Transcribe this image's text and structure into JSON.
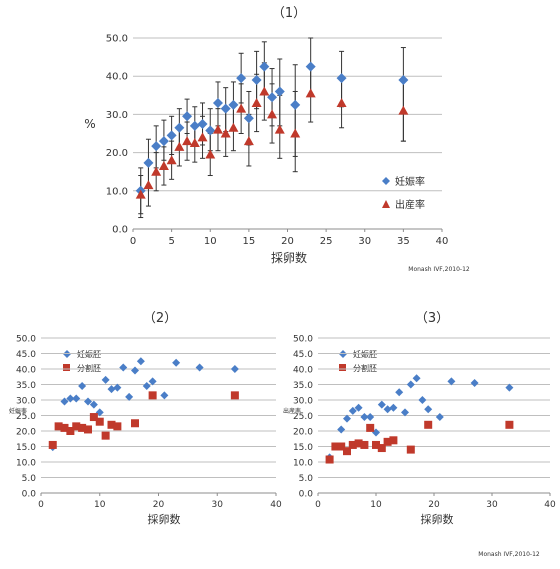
{
  "charts": [
    {
      "id": "c1",
      "title": "（1）",
      "xlabel": "採卵数",
      "ylabel": "%",
      "credit": "Monash IVF,2010-12",
      "xlim": [
        0,
        40
      ],
      "ylim": [
        0,
        50
      ],
      "xticks": [
        0,
        5,
        10,
        15,
        20,
        25,
        30,
        35,
        40
      ],
      "yticks": [
        0,
        10,
        20,
        30,
        40,
        50
      ],
      "legend": [
        "妊娠率",
        "出産率"
      ]
    },
    {
      "id": "c2",
      "title": "（2）",
      "xlabel": "採卵数",
      "ylabel": "妊娠率",
      "xlim": [
        0,
        40
      ],
      "ylim": [
        0,
        50
      ],
      "xticks": [
        0,
        10,
        20,
        30,
        40
      ],
      "yticks": [
        0,
        5,
        10,
        15,
        20,
        25,
        30,
        35,
        40,
        45,
        50
      ],
      "legend": [
        "妊娠胚",
        "分割胚"
      ]
    },
    {
      "id": "c3",
      "title": "（3）",
      "xlabel": "採卵数",
      "ylabel": "出産率",
      "credit": "Monash IVF,2010-12",
      "xlim": [
        0,
        40
      ],
      "ylim": [
        0,
        50
      ],
      "xticks": [
        0,
        10,
        20,
        30,
        40
      ],
      "yticks": [
        0,
        5,
        10,
        15,
        20,
        25,
        30,
        35,
        40,
        45,
        50
      ],
      "legend": [
        "妊娠胚",
        "分割胚"
      ]
    }
  ],
  "chart_data": [
    {
      "type": "scatter",
      "title": "（1）",
      "xlabel": "採卵数",
      "ylabel": "%",
      "xlim": [
        0,
        40
      ],
      "ylim": [
        0,
        50
      ],
      "grid": true,
      "legend_position": "bottom-right",
      "series": [
        {
          "name": "妊娠率",
          "color": "#4A7EC7",
          "marker": "diamond",
          "points": [
            {
              "x": 1,
              "y": 10.0,
              "lo": 4.0,
              "hi": 16.0
            },
            {
              "x": 2,
              "y": 17.3,
              "lo": 11.0,
              "hi": 23.5
            },
            {
              "x": 3,
              "y": 21.7,
              "lo": 16.0,
              "hi": 27.0
            },
            {
              "x": 4,
              "y": 23.0,
              "lo": 18.0,
              "hi": 28.5
            },
            {
              "x": 5,
              "y": 24.5,
              "lo": 19.5,
              "hi": 29.5
            },
            {
              "x": 6,
              "y": 26.5,
              "lo": 21.5,
              "hi": 31.5
            },
            {
              "x": 7,
              "y": 29.5,
              "lo": 25.0,
              "hi": 34.0
            },
            {
              "x": 8,
              "y": 27.0,
              "lo": 22.0,
              "hi": 32.0
            },
            {
              "x": 9,
              "y": 27.5,
              "lo": 22.0,
              "hi": 33.0
            },
            {
              "x": 10,
              "y": 25.8,
              "lo": 20.5,
              "hi": 31.5
            },
            {
              "x": 11,
              "y": 33.0,
              "lo": 27.0,
              "hi": 38.5
            },
            {
              "x": 12,
              "y": 31.5,
              "lo": 25.5,
              "hi": 37.0
            },
            {
              "x": 13,
              "y": 32.5,
              "lo": 26.5,
              "hi": 38.5
            },
            {
              "x": 14,
              "y": 39.5,
              "lo": 33.0,
              "hi": 46.0
            },
            {
              "x": 15,
              "y": 29.0,
              "lo": 22.0,
              "hi": 36.0
            },
            {
              "x": 16,
              "y": 39.0,
              "lo": 31.5,
              "hi": 46.5
            },
            {
              "x": 17,
              "y": 42.5,
              "lo": 35.5,
              "hi": 49.0
            },
            {
              "x": 18,
              "y": 34.5,
              "lo": 27.0,
              "hi": 42.0
            },
            {
              "x": 19,
              "y": 36.0,
              "lo": 27.0,
              "hi": 44.5
            },
            {
              "x": 21,
              "y": 32.5,
              "lo": 19.0,
              "hi": 43.0
            },
            {
              "x": 23,
              "y": 42.5,
              "lo": 35.0,
              "hi": 50.0
            },
            {
              "x": 27,
              "y": 39.5,
              "lo": 32.0,
              "hi": 46.5
            },
            {
              "x": 35,
              "y": 39.0,
              "lo": 23.0,
              "hi": 47.5
            }
          ]
        },
        {
          "name": "出産率",
          "color": "#C0392B",
          "marker": "triangle",
          "points": [
            {
              "x": 1,
              "y": 9.0,
              "lo": 3.0,
              "hi": 14.0
            },
            {
              "x": 2,
              "y": 11.5,
              "lo": 6.0,
              "hi": 17.0
            },
            {
              "x": 3,
              "y": 15.0,
              "lo": 10.0,
              "hi": 20.0
            },
            {
              "x": 4,
              "y": 16.5,
              "lo": 11.5,
              "hi": 21.5
            },
            {
              "x": 5,
              "y": 18.0,
              "lo": 13.0,
              "hi": 23.0
            },
            {
              "x": 6,
              "y": 21.5,
              "lo": 16.5,
              "hi": 26.5
            },
            {
              "x": 7,
              "y": 23.0,
              "lo": 18.0,
              "hi": 28.0
            },
            {
              "x": 8,
              "y": 22.5,
              "lo": 17.5,
              "hi": 27.5
            },
            {
              "x": 9,
              "y": 24.0,
              "lo": 18.5,
              "hi": 29.5
            },
            {
              "x": 10,
              "y": 19.5,
              "lo": 14.0,
              "hi": 25.0
            },
            {
              "x": 11,
              "y": 26.0,
              "lo": 20.5,
              "hi": 31.5
            },
            {
              "x": 12,
              "y": 25.0,
              "lo": 19.0,
              "hi": 31.0
            },
            {
              "x": 13,
              "y": 26.5,
              "lo": 20.5,
              "hi": 32.5
            },
            {
              "x": 14,
              "y": 31.5,
              "lo": 25.0,
              "hi": 38.0
            },
            {
              "x": 15,
              "y": 23.0,
              "lo": 16.5,
              "hi": 30.0
            },
            {
              "x": 16,
              "y": 33.0,
              "lo": 25.5,
              "hi": 40.5
            },
            {
              "x": 17,
              "y": 36.0,
              "lo": 28.5,
              "hi": 43.5
            },
            {
              "x": 18,
              "y": 30.0,
              "lo": 22.5,
              "hi": 38.0
            },
            {
              "x": 19,
              "y": 26.0,
              "lo": 18.5,
              "hi": 35.0
            },
            {
              "x": 21,
              "y": 25.0,
              "lo": 15.0,
              "hi": 36.0
            },
            {
              "x": 23,
              "y": 35.5,
              "lo": 28.0,
              "hi": 43.0
            },
            {
              "x": 27,
              "y": 33.0,
              "lo": 26.5,
              "hi": 40.0
            },
            {
              "x": 35,
              "y": 31.0,
              "lo": 23.0,
              "hi": 39.0
            }
          ]
        }
      ]
    },
    {
      "type": "scatter",
      "title": "（2）",
      "xlabel": "採卵数",
      "ylabel": "妊娠率",
      "xlim": [
        0,
        40
      ],
      "ylim": [
        0,
        50
      ],
      "grid": true,
      "legend_position": "top-left",
      "series": [
        {
          "name": "妊娠胚",
          "color": "#4A7EC7",
          "marker": "diamond",
          "points": [
            {
              "x": 2,
              "y": 14.8
            },
            {
              "x": 4,
              "y": 29.5
            },
            {
              "x": 5,
              "y": 30.5
            },
            {
              "x": 6,
              "y": 30.5
            },
            {
              "x": 7,
              "y": 34.5
            },
            {
              "x": 8,
              "y": 29.5
            },
            {
              "x": 9,
              "y": 28.5
            },
            {
              "x": 10,
              "y": 26.0
            },
            {
              "x": 11,
              "y": 36.5
            },
            {
              "x": 12,
              "y": 33.5
            },
            {
              "x": 13,
              "y": 34.0
            },
            {
              "x": 14,
              "y": 40.5
            },
            {
              "x": 15,
              "y": 31.0
            },
            {
              "x": 16,
              "y": 39.5
            },
            {
              "x": 17,
              "y": 42.5
            },
            {
              "x": 18,
              "y": 34.5
            },
            {
              "x": 19,
              "y": 36.0
            },
            {
              "x": 21,
              "y": 31.5
            },
            {
              "x": 23,
              "y": 42.0
            },
            {
              "x": 27,
              "y": 40.5
            },
            {
              "x": 33,
              "y": 40.0
            }
          ]
        },
        {
          "name": "分割胚",
          "color": "#C0392B",
          "marker": "square",
          "points": [
            {
              "x": 2,
              "y": 15.5
            },
            {
              "x": 3,
              "y": 21.5
            },
            {
              "x": 4,
              "y": 21.0
            },
            {
              "x": 5,
              "y": 20.0
            },
            {
              "x": 6,
              "y": 21.5
            },
            {
              "x": 7,
              "y": 21.0
            },
            {
              "x": 8,
              "y": 20.5
            },
            {
              "x": 9,
              "y": 24.5
            },
            {
              "x": 10,
              "y": 23.0
            },
            {
              "x": 11,
              "y": 18.5
            },
            {
              "x": 12,
              "y": 22.0
            },
            {
              "x": 13,
              "y": 21.5
            },
            {
              "x": 16,
              "y": 22.5
            },
            {
              "x": 19,
              "y": 31.5
            },
            {
              "x": 33,
              "y": 31.5
            }
          ]
        }
      ]
    },
    {
      "type": "scatter",
      "title": "（3）",
      "xlabel": "採卵数",
      "ylabel": "出産率",
      "xlim": [
        0,
        40
      ],
      "ylim": [
        0,
        50
      ],
      "grid": true,
      "legend_position": "top-left",
      "series": [
        {
          "name": "妊娠胚",
          "color": "#4A7EC7",
          "marker": "diamond",
          "points": [
            {
              "x": 2,
              "y": 11.5
            },
            {
              "x": 4,
              "y": 20.5
            },
            {
              "x": 5,
              "y": 24.0
            },
            {
              "x": 6,
              "y": 26.5
            },
            {
              "x": 7,
              "y": 27.5
            },
            {
              "x": 8,
              "y": 24.5
            },
            {
              "x": 9,
              "y": 24.5
            },
            {
              "x": 10,
              "y": 19.5
            },
            {
              "x": 11,
              "y": 28.5
            },
            {
              "x": 12,
              "y": 27.0
            },
            {
              "x": 13,
              "y": 27.5
            },
            {
              "x": 14,
              "y": 32.5
            },
            {
              "x": 15,
              "y": 26.0
            },
            {
              "x": 16,
              "y": 35.0
            },
            {
              "x": 17,
              "y": 37.0
            },
            {
              "x": 18,
              "y": 30.0
            },
            {
              "x": 19,
              "y": 27.0
            },
            {
              "x": 21,
              "y": 24.5
            },
            {
              "x": 23,
              "y": 36.0
            },
            {
              "x": 27,
              "y": 35.5
            },
            {
              "x": 33,
              "y": 34.0
            }
          ]
        },
        {
          "name": "分割胚",
          "color": "#C0392B",
          "marker": "square",
          "points": [
            {
              "x": 2,
              "y": 10.8
            },
            {
              "x": 3,
              "y": 15.0
            },
            {
              "x": 4,
              "y": 15.0
            },
            {
              "x": 5,
              "y": 13.5
            },
            {
              "x": 6,
              "y": 15.5
            },
            {
              "x": 7,
              "y": 16.0
            },
            {
              "x": 8,
              "y": 15.5
            },
            {
              "x": 9,
              "y": 21.0
            },
            {
              "x": 10,
              "y": 15.5
            },
            {
              "x": 11,
              "y": 14.5
            },
            {
              "x": 12,
              "y": 16.5
            },
            {
              "x": 13,
              "y": 17.0
            },
            {
              "x": 16,
              "y": 14.0
            },
            {
              "x": 19,
              "y": 22.0
            },
            {
              "x": 33,
              "y": 22.0
            }
          ]
        }
      ]
    }
  ]
}
